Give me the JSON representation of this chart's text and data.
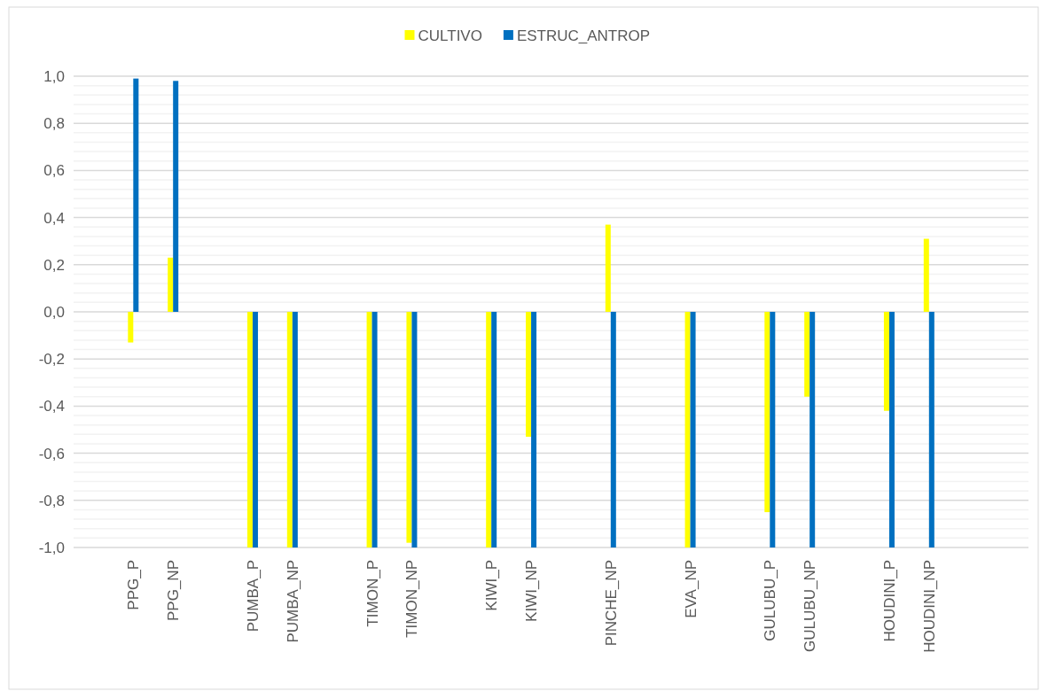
{
  "chart_data": {
    "type": "bar",
    "categories": [
      null,
      "PPG_P",
      "PPG_NP",
      null,
      "PUMBA_P",
      "PUMBA_NP",
      null,
      "TIMON_P",
      "TIMON_NP",
      null,
      "KIWI_P",
      "KIWI_NP",
      null,
      "PINCHE_NP",
      null,
      "EVA_NP",
      null,
      "GULUBU_P",
      "GULUBU_NP",
      null,
      "HOUDINI_P",
      "HOUDINI_NP",
      null,
      null
    ],
    "series": [
      {
        "name": "CULTIVO",
        "color": "#ffff00",
        "values": [
          null,
          -0.13,
          0.23,
          null,
          -1.0,
          -1.0,
          null,
          -1.0,
          -0.98,
          null,
          -1.0,
          -0.53,
          null,
          0.37,
          null,
          -1.0,
          null,
          -0.85,
          -0.36,
          null,
          -0.42,
          0.31,
          null,
          null
        ]
      },
      {
        "name": "ESTRUC_ANTROP",
        "color": "#0070c0",
        "values": [
          null,
          0.99,
          0.98,
          null,
          -1.0,
          -1.0,
          null,
          -1.0,
          -1.0,
          null,
          -1.0,
          -1.0,
          null,
          -1.0,
          null,
          -1.0,
          null,
          -1.0,
          -1.0,
          null,
          -1.0,
          -1.0,
          null,
          null
        ]
      }
    ],
    "ylim": [
      -1.0,
      1.0
    ],
    "yticks": [
      {
        "value": -1.0,
        "label": "-1,0"
      },
      {
        "value": -0.8,
        "label": "-0,8"
      },
      {
        "value": -0.6,
        "label": "-0,6"
      },
      {
        "value": -0.4,
        "label": "-0,4"
      },
      {
        "value": -0.2,
        "label": "-0,2"
      },
      {
        "value": 0.0,
        "label": "0,0"
      },
      {
        "value": 0.2,
        "label": "0,2"
      },
      {
        "value": 0.4,
        "label": "0,4"
      },
      {
        "value": 0.6,
        "label": "0,6"
      },
      {
        "value": 0.8,
        "label": "0,8"
      },
      {
        "value": 1.0,
        "label": "1,0"
      }
    ],
    "grid": "y",
    "legend": "top"
  }
}
